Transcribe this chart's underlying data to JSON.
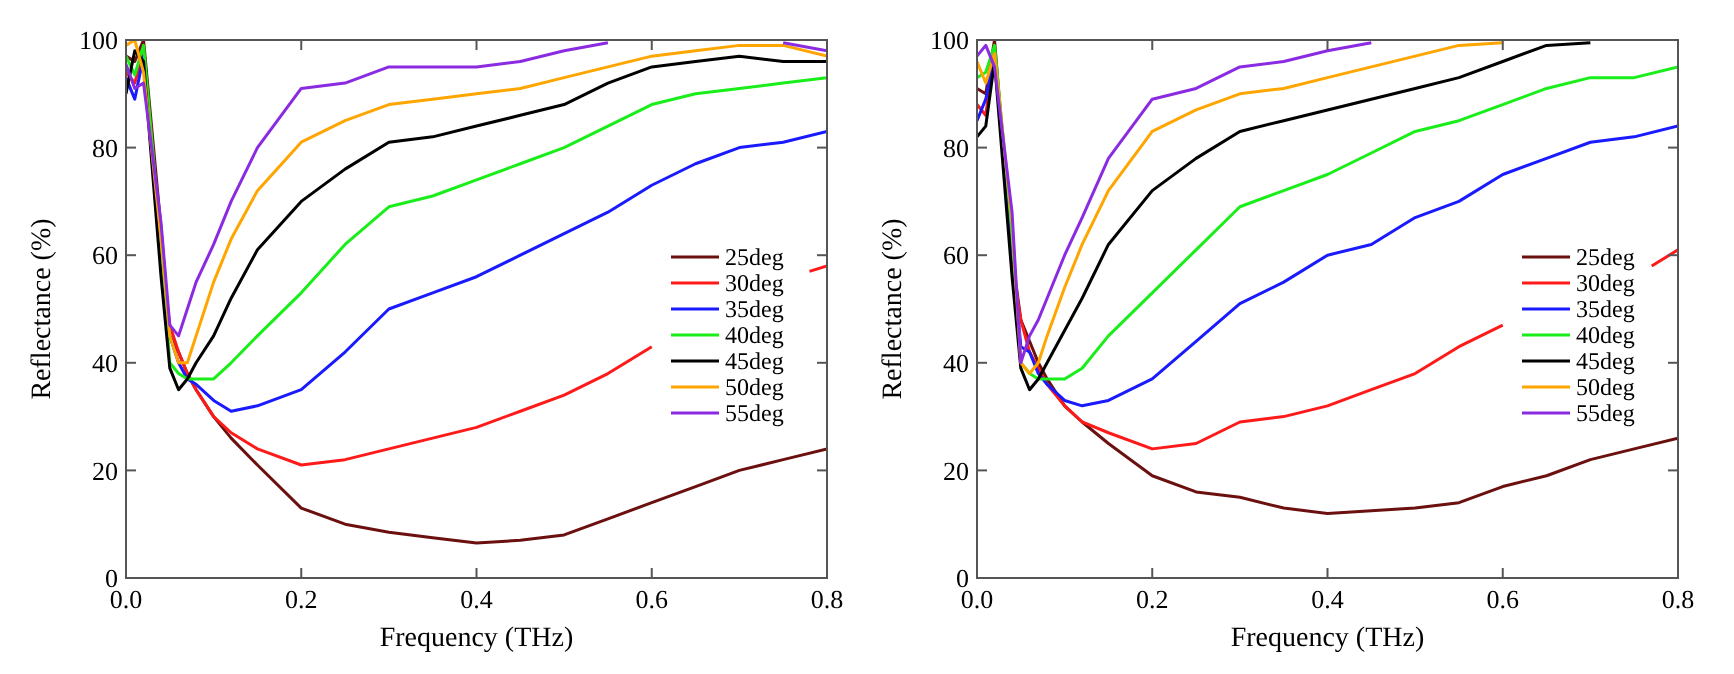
{
  "chart_data": [
    {
      "type": "line",
      "xlabel": "Frequency (THz)",
      "ylabel": "Reflectance (%)",
      "x": [
        0,
        0.01,
        0.02,
        0.04,
        0.05,
        0.06,
        0.07,
        0.08,
        0.1,
        0.12,
        0.15,
        0.2,
        0.25,
        0.3,
        0.35,
        0.4,
        0.45,
        0.5,
        0.55,
        0.6,
        0.65,
        0.7,
        0.75,
        0.8
      ],
      "xlim": [
        0,
        0.8
      ],
      "ylim": [
        0,
        100
      ],
      "xticks": [
        {
          "value": 0,
          "label": "0.0"
        },
        0.2,
        0.4,
        0.6,
        0.8
      ],
      "yticks": [
        0,
        20,
        40,
        60,
        80,
        100
      ],
      "grid": false,
      "legend": "right",
      "series": [
        {
          "name": "25deg",
          "color": "#6b0f0f",
          "values": [
            97,
            96,
            100,
            65,
            45,
            42,
            38,
            35,
            30,
            26,
            21,
            13,
            10,
            8.5,
            7.5,
            6.5,
            7,
            8,
            11,
            14,
            17,
            20,
            22,
            24
          ]
        },
        {
          "name": "30deg",
          "color": "#ff1a1a",
          "x": [
            0,
            0.01,
            0.02,
            0.04,
            0.05,
            0.06,
            0.07,
            0.08,
            0.1,
            0.12,
            0.15,
            0.2,
            0.25,
            0.3,
            0.35,
            0.4,
            0.45,
            0.5,
            0.55,
            0.6,
            0.7,
            0.78,
            0.8
          ],
          "values": [
            94,
            92,
            98,
            60,
            47,
            42,
            38,
            35,
            30,
            27,
            24,
            21,
            22,
            24,
            26,
            28,
            31,
            34,
            38,
            43,
            null,
            57,
            58
          ]
        },
        {
          "name": "35deg",
          "color": "#1a1aff",
          "values": [
            93,
            89,
            97,
            58,
            45,
            40,
            37,
            36,
            33,
            31,
            32,
            35,
            42,
            50,
            53,
            56,
            60,
            64,
            68,
            73,
            77,
            80,
            81,
            83
          ]
        },
        {
          "name": "40deg",
          "color": "#1aee1a",
          "values": [
            97,
            93.5,
            99,
            62,
            40,
            38,
            37,
            37,
            37,
            40,
            45,
            53,
            62,
            69,
            71,
            74,
            77,
            80,
            84,
            88,
            90,
            91,
            92,
            93
          ]
        },
        {
          "name": "45deg",
          "color": "#000000",
          "values": [
            90,
            98,
            96,
            56,
            39,
            35,
            37,
            40,
            45,
            52,
            61,
            70,
            76,
            81,
            82,
            84,
            86,
            88,
            92,
            95,
            96,
            97,
            96,
            96
          ]
        },
        {
          "name": "50deg",
          "color": "#ffa500",
          "values": [
            99,
            100,
            94,
            63,
            45,
            40,
            40,
            45,
            55,
            63,
            72,
            81,
            85,
            88,
            89,
            90,
            91,
            93,
            95,
            97,
            98,
            99,
            99,
            97
          ]
        },
        {
          "name": "55deg",
          "color": "#8a2be2",
          "values": [
            95.5,
            91,
            92,
            66,
            47,
            45,
            50,
            55,
            62,
            70,
            80,
            91,
            92,
            95,
            95,
            95,
            96,
            98,
            99.5,
            null,
            null,
            null,
            99.5,
            98
          ]
        }
      ]
    },
    {
      "type": "line",
      "xlabel": "Frequency (THz)",
      "ylabel": "Reflectance (%)",
      "x": [
        0,
        0.01,
        0.02,
        0.04,
        0.05,
        0.06,
        0.07,
        0.08,
        0.1,
        0.12,
        0.15,
        0.2,
        0.25,
        0.3,
        0.35,
        0.4,
        0.45,
        0.5,
        0.55,
        0.6,
        0.65,
        0.7,
        0.75,
        0.8
      ],
      "xlim": [
        0,
        0.8
      ],
      "ylim": [
        0,
        100
      ],
      "xticks": [
        {
          "value": 0,
          "label": "0.0"
        },
        0.2,
        0.4,
        0.6,
        0.8
      ],
      "yticks": [
        0,
        20,
        40,
        60,
        80,
        100
      ],
      "grid": false,
      "legend": "right",
      "series": [
        {
          "name": "25deg",
          "color": "#6b0f0f",
          "values": [
            91,
            90,
            100,
            60,
            48,
            44,
            40,
            37,
            32,
            29,
            25,
            19,
            16,
            15,
            13,
            12,
            12.5,
            13,
            14,
            17,
            19,
            22,
            24,
            26
          ]
        },
        {
          "name": "30deg",
          "color": "#ff1a1a",
          "x": [
            0,
            0.01,
            0.02,
            0.04,
            0.05,
            0.06,
            0.07,
            0.08,
            0.1,
            0.12,
            0.15,
            0.2,
            0.25,
            0.3,
            0.35,
            0.4,
            0.45,
            0.5,
            0.55,
            0.6,
            0.7,
            0.77,
            0.8
          ],
          "values": [
            88,
            86,
            98.5,
            58,
            48,
            42,
            39,
            36,
            32,
            29,
            27,
            24,
            25,
            29,
            30,
            32,
            35,
            38,
            43,
            47,
            null,
            58,
            61
          ]
        },
        {
          "name": "35deg",
          "color": "#1a1aff",
          "values": [
            85,
            89,
            97,
            62,
            43,
            42,
            38,
            36,
            33,
            32,
            33,
            37,
            44,
            51,
            55,
            60,
            62,
            67,
            70,
            75,
            78,
            81,
            82,
            84
          ]
        },
        {
          "name": "40deg",
          "color": "#1aee1a",
          "values": [
            93,
            94,
            99,
            64,
            40,
            38,
            37,
            37,
            37,
            39,
            45,
            53,
            61,
            69,
            72,
            75,
            79,
            83,
            85,
            88,
            91,
            93,
            93,
            95
          ]
        },
        {
          "name": "45deg",
          "color": "#000000",
          "values": [
            82,
            84,
            96,
            56,
            39,
            35,
            37,
            40,
            46,
            52,
            62,
            72,
            78,
            83,
            85,
            87,
            89,
            91,
            93,
            96,
            99,
            99.5,
            null,
            null
          ]
        },
        {
          "name": "50deg",
          "color": "#ffa500",
          "values": [
            96,
            92,
            97.5,
            66,
            40,
            38,
            40,
            45,
            54,
            62,
            72,
            83,
            87,
            90,
            91,
            93,
            95,
            97,
            99,
            99.5,
            null,
            null,
            null,
            null
          ]
        },
        {
          "name": "55deg",
          "color": "#8a2be2",
          "values": [
            97,
            99,
            95,
            68,
            40,
            45,
            48,
            52,
            60,
            67,
            78,
            89,
            91,
            95,
            96,
            98,
            99.5,
            null,
            null,
            null,
            null,
            null,
            null,
            null
          ]
        }
      ]
    }
  ]
}
